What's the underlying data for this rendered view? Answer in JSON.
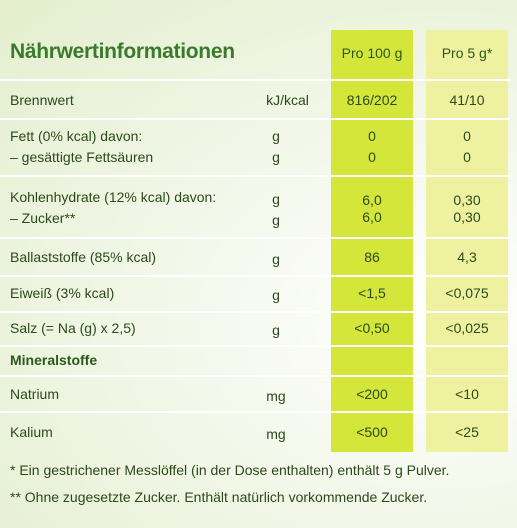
{
  "table": {
    "title": "Nährwertinformationen",
    "col_100": "Pro 100 g",
    "col_5": "Pro 5 g*",
    "rows": {
      "brennwert": {
        "label": "Brennwert",
        "unit": "kJ/kcal",
        "v100": "816/202",
        "v5": "41/10"
      },
      "fett": {
        "label": "Fett (0% kcal) davon:",
        "unit": "g",
        "v100": "0",
        "v5": "0"
      },
      "fettsaeuren": {
        "label": "– gesättigte Fettsäuren",
        "unit": "g",
        "v100": "0",
        "v5": "0"
      },
      "kohlenhydrate": {
        "label": "Kohlenhydrate (12% kcal) davon:",
        "unit": "g",
        "v100": "6,0",
        "v5": "0,30"
      },
      "zucker": {
        "label": "– Zucker**",
        "unit": "g",
        "v100": "6,0",
        "v5": "0,30"
      },
      "ballast": {
        "label": "Ballaststoffe (85% kcal)",
        "unit": "g",
        "v100": "86",
        "v5": "4,3"
      },
      "eiweiss": {
        "label": "Eiweiß (3% kcal)",
        "unit": "g",
        "v100": "<1,5",
        "v5": "<0,075"
      },
      "salz": {
        "label": "Salz (= Na (g) x 2,5)",
        "unit": "g",
        "v100": "<0,50",
        "v5": "<0,025"
      },
      "mineral": {
        "label": "Mineralstoffe"
      },
      "natrium": {
        "label": "Natrium",
        "unit": "mg",
        "v100": "<200",
        "v5": "<10"
      },
      "kalium": {
        "label": "Kalium",
        "unit": "mg",
        "v100": "<500",
        "v5": "<25"
      }
    }
  },
  "footnotes": {
    "note1": "*  Ein gestrichener Messlöffel (in der Dose enthalten) enthält 5 g Pulver.",
    "note2": "** Ohne zugesetzte Zucker. Enthält natürlich vorkommende Zucker."
  }
}
